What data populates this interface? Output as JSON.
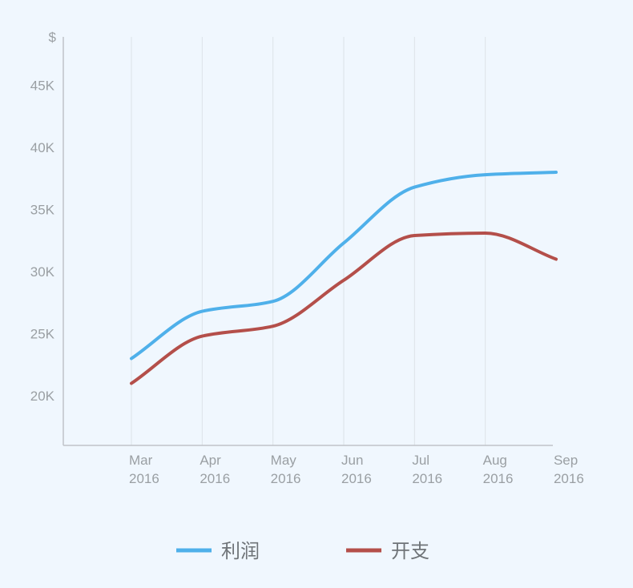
{
  "chart_data": {
    "type": "line",
    "title": "",
    "xlabel": "",
    "ylabel": "$",
    "categories": [
      [
        "Mar",
        "2016"
      ],
      [
        "Apr",
        "2016"
      ],
      [
        "May",
        "2016"
      ],
      [
        "Jun",
        "2016"
      ],
      [
        "Jul",
        "2016"
      ],
      [
        "Aug",
        "2016"
      ],
      [
        "Sep",
        "2016"
      ]
    ],
    "ylim": [
      16000,
      48000
    ],
    "yticks": [
      20000,
      25000,
      30000,
      35000,
      40000,
      45000
    ],
    "ytick_labels": [
      "20K",
      "25K",
      "30K",
      "35K",
      "40K",
      "45K"
    ],
    "grid": {
      "vertical": true,
      "horizontal": false
    },
    "legend_position": "bottom-center",
    "series": [
      {
        "name": "利润",
        "color": "#4fb0ea",
        "values": [
          23000,
          26800,
          27600,
          32300,
          36800,
          37800,
          38000
        ]
      },
      {
        "name": "开支",
        "color": "#b44f4a",
        "values": [
          21000,
          24800,
          25600,
          29300,
          32900,
          33100,
          31000
        ]
      }
    ]
  }
}
